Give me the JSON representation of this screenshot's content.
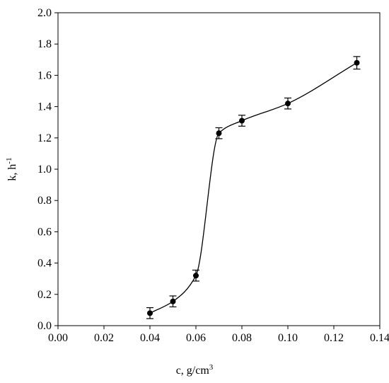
{
  "chart_data": {
    "type": "scatter",
    "xlabel": {
      "text": "c, g/cm",
      "sup": "3"
    },
    "ylabel": {
      "text": "k, h",
      "sup": "-1"
    },
    "x": [
      0.04,
      0.05,
      0.06,
      0.07,
      0.08,
      0.1,
      0.13
    ],
    "series": [
      {
        "color": "#000000",
        "values": [
          0.08,
          0.155,
          0.32,
          1.23,
          1.31,
          1.42,
          1.68
        ],
        "errors": [
          0.035,
          0.035,
          0.035,
          0.035,
          0.035,
          0.035,
          0.04
        ]
      }
    ],
    "xlim": [
      0,
      0.14
    ],
    "ylim": [
      0,
      2
    ],
    "xticks": [
      {
        "value": 0,
        "label": "0.00"
      },
      {
        "value": 0.02,
        "label": "0.02"
      },
      {
        "value": 0.04,
        "label": "0.04"
      },
      {
        "value": 0.06,
        "label": "0.06"
      },
      {
        "value": 0.08,
        "label": "0.08"
      },
      {
        "value": 0.1,
        "label": "0.10"
      },
      {
        "value": 0.12,
        "label": "0.12"
      },
      {
        "value": 0.14,
        "label": "0.14"
      }
    ],
    "yticks": [
      {
        "value": 0,
        "label": "0.0"
      },
      {
        "value": 0.2,
        "label": "0.2"
      },
      {
        "value": 0.4,
        "label": "0.4"
      },
      {
        "value": 0.6,
        "label": "0.6"
      },
      {
        "value": 0.8,
        "label": "0.8"
      },
      {
        "value": 1,
        "label": "1.0"
      },
      {
        "value": 1.2,
        "label": "1.2"
      },
      {
        "value": 1.4,
        "label": "1.4"
      },
      {
        "value": 1.6,
        "label": "1.6"
      },
      {
        "value": 1.8,
        "label": "1.8"
      },
      {
        "value": 2,
        "label": "2.0"
      }
    ],
    "smooth_line": true,
    "grid": false
  }
}
